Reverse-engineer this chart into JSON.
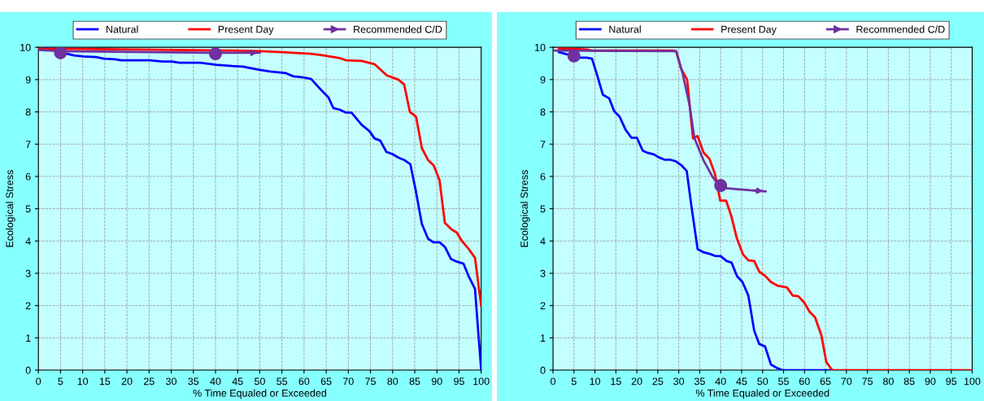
{
  "chart_data": [
    {
      "type": "line",
      "xlabel": "% Time Equaled or Exceeded",
      "ylabel": "Ecological Stress",
      "xlim": [
        0,
        100
      ],
      "ylim": [
        0,
        10
      ],
      "xticks": [
        0,
        5,
        10,
        15,
        20,
        25,
        30,
        35,
        40,
        45,
        50,
        55,
        60,
        65,
        70,
        75,
        80,
        85,
        90,
        95,
        100
      ],
      "yticks": [
        0,
        1,
        2,
        3,
        4,
        5,
        6,
        7,
        8,
        9,
        10
      ],
      "grid": true,
      "legend": "top",
      "line_style": "solid",
      "series": [
        {
          "name": "Natural",
          "color": "#0000ff",
          "x": [
            1.4,
            5.1,
            8,
            10.1,
            13,
            14.8,
            17.3,
            18.7,
            25.1,
            28,
            30.1,
            31.9,
            36.6,
            40.1,
            43.7,
            46.2,
            48,
            50,
            52.3,
            55.9,
            57.6,
            59.8,
            61.6,
            63.7,
            65.5,
            66.6,
            68,
            69.4,
            70.7,
            73,
            74.8,
            75.9,
            77.2,
            78.6,
            80,
            81.2,
            82.6,
            84,
            85.2,
            86.6,
            88,
            89.2,
            90.6,
            91.8,
            93.2,
            94.5,
            96,
            97.2,
            98.6,
            100
          ],
          "values": [
            10,
            9.85,
            9.75,
            9.72,
            9.7,
            9.65,
            9.63,
            9.6,
            9.6,
            9.56,
            9.56,
            9.52,
            9.52,
            9.46,
            9.42,
            9.4,
            9.35,
            9.3,
            9.25,
            9.2,
            9.1,
            9.07,
            9.02,
            8.7,
            8.45,
            8.12,
            8.07,
            7.98,
            7.98,
            7.6,
            7.4,
            7.18,
            7.11,
            6.76,
            6.69,
            6.59,
            6.51,
            6.38,
            5.58,
            4.53,
            4.07,
            3.96,
            3.96,
            3.82,
            3.44,
            3.36,
            3.3,
            2.9,
            2.52,
            0
          ]
        },
        {
          "name": "Present Day",
          "color": "#ff0000",
          "x": [
            0,
            9.4,
            43.7,
            50,
            55,
            61.6,
            64.4,
            68,
            69.4,
            73,
            75.9,
            78.7,
            81.3,
            82.6,
            83.9,
            85.3,
            86.6,
            88,
            89.3,
            90.6,
            91.8,
            93.2,
            94.5,
            95.7,
            97.2,
            98.6,
            100
          ],
          "values": [
            9.95,
            9.95,
            9.9,
            9.88,
            9.85,
            9.8,
            9.75,
            9.67,
            9.6,
            9.58,
            9.48,
            9.13,
            9,
            8.85,
            8,
            7.85,
            6.88,
            6.51,
            6.34,
            5.88,
            4.56,
            4.37,
            4.26,
            3.99,
            3.75,
            3.48,
            2
          ]
        },
        {
          "name": "Recommended C/D",
          "color": "#7030a0",
          "x": [
            0,
            5,
            40,
            50
          ],
          "values": [
            9.92,
            9.88,
            9.83,
            9.83
          ]
        },
        {
          "type": "scatter",
          "color": "#7030a0",
          "marker": "circle",
          "x": [
            5,
            40
          ],
          "values": [
            9.83,
            9.8
          ]
        }
      ]
    },
    {
      "type": "line",
      "xlabel": "% Time Equaled or Exceeded",
      "ylabel": "Ecological Stress",
      "xlim": [
        0,
        100
      ],
      "ylim": [
        0,
        10
      ],
      "xticks": [
        0,
        5,
        10,
        15,
        20,
        25,
        30,
        35,
        40,
        45,
        50,
        55,
        60,
        65,
        70,
        75,
        80,
        85,
        90,
        95,
        100
      ],
      "yticks": [
        0,
        1,
        2,
        3,
        4,
        5,
        6,
        7,
        8,
        9,
        10
      ],
      "grid": true,
      "legend": "top",
      "line_style": "solid",
      "series": [
        {
          "name": "Natural",
          "color": "#0000ff",
          "x": [
            1.4,
            6.2,
            8,
            9.3,
            10.5,
            11.9,
            13.4,
            14.6,
            15.9,
            17.3,
            18.7,
            20,
            21.4,
            22.6,
            24.1,
            25.1,
            26.6,
            27.9,
            29.3,
            30.6,
            31.9,
            33,
            34.5,
            35.9,
            37.4,
            38.6,
            40,
            41.4,
            42.6,
            43.9,
            45.2,
            46.6,
            48,
            49.2,
            50.6,
            52,
            53.5,
            54.7,
            66.6
          ],
          "values": [
            9.85,
            9.68,
            9.68,
            9.65,
            9.15,
            8.53,
            8.42,
            8.02,
            7.85,
            7.45,
            7.2,
            7.2,
            6.8,
            6.73,
            6.68,
            6.6,
            6.52,
            6.52,
            6.47,
            6.35,
            6.17,
            5.1,
            3.75,
            3.65,
            3.6,
            3.54,
            3.53,
            3.38,
            3.33,
            2.91,
            2.73,
            2.31,
            1.22,
            0.81,
            0.73,
            0.17,
            0.06,
            0,
            0
          ]
        },
        {
          "name": "Present Day",
          "color": "#ff0000",
          "x": [
            1.4,
            5.1,
            8,
            9.3,
            28.7,
            29.4,
            30.5,
            32,
            32.6,
            33.4,
            34.5,
            35.9,
            37.3,
            38.6,
            39.9,
            41.3,
            42.5,
            43.8,
            45.3,
            46.6,
            48,
            49.2,
            50.6,
            52,
            53.5,
            55.8,
            57.2,
            58.5,
            59.9,
            61.2,
            62.5,
            64,
            65.2,
            66.6,
            100
          ],
          "values": [
            9.97,
            9.95,
            9.93,
            9.9,
            9.9,
            9.87,
            9.35,
            9,
            8.2,
            7.18,
            7.25,
            6.74,
            6.55,
            6.09,
            5.25,
            5.25,
            4.79,
            4.11,
            3.59,
            3.4,
            3.38,
            3.05,
            2.92,
            2.73,
            2.62,
            2.56,
            2.31,
            2.29,
            2.1,
            1.81,
            1.64,
            1.09,
            0.25,
            0,
            0
          ]
        },
        {
          "name": "Recommended C/D",
          "color": "#7030a0",
          "x": [
            0,
            29.4,
            30.9,
            32.6,
            33.7,
            35.9,
            38,
            40,
            44.6,
            47.1,
            50.7
          ],
          "values": [
            9.9,
            9.88,
            9.2,
            8.2,
            7.2,
            6.5,
            6,
            5.65,
            5.6,
            5.57,
            5.54
          ]
        },
        {
          "type": "scatter",
          "color": "#7030a0",
          "marker": "circle",
          "x": [
            5,
            40
          ],
          "values": [
            9.73,
            5.72
          ]
        }
      ]
    }
  ]
}
